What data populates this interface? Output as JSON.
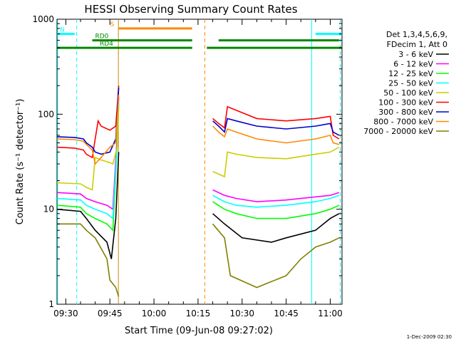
{
  "chart_data": {
    "type": "line",
    "title": "HESSI Observing Summary Count Rates",
    "xlabel": "Start Time (09-Jun-08 09:27:02)",
    "ylabel": "Count Rate (s⁻¹ detector⁻¹)",
    "yscale": "log",
    "ylim": [
      1,
      1000
    ],
    "xlim_minutes": [
      567,
      664
    ],
    "x_ticks": [
      {
        "minutes": 570,
        "label": "09:30"
      },
      {
        "minutes": 585,
        "label": "09:45"
      },
      {
        "minutes": 600,
        "label": "10:00"
      },
      {
        "minutes": 615,
        "label": "10:15"
      },
      {
        "minutes": 630,
        "label": "10:30"
      },
      {
        "minutes": 645,
        "label": "10:45"
      },
      {
        "minutes": 660,
        "label": "11:00"
      }
    ],
    "y_ticks": [
      {
        "value": 1,
        "label": "1"
      },
      {
        "value": 10,
        "label": "10"
      },
      {
        "value": 100,
        "label": "100"
      },
      {
        "value": 1000,
        "label": "1000"
      }
    ],
    "legend": {
      "placement": "right",
      "header": [
        "Det 1,3,4,5,6,9,",
        "FDecim 1, Att 0"
      ]
    },
    "series": [
      {
        "name": "3 - 6 keV",
        "color": "#000000",
        "points": [
          [
            567,
            10
          ],
          [
            575,
            9.5
          ],
          [
            577,
            8
          ],
          [
            580,
            6
          ],
          [
            584,
            4.5
          ],
          [
            585.5,
            3
          ],
          [
            587,
            8
          ],
          [
            588,
            40
          ],
          [
            619,
            null
          ],
          [
            620,
            9
          ],
          [
            624,
            7
          ],
          [
            630,
            5
          ],
          [
            640,
            4.5
          ],
          [
            645,
            5
          ],
          [
            655,
            6
          ],
          [
            660,
            8
          ],
          [
            663,
            9
          ]
        ]
      },
      {
        "name": "6 - 12 keV",
        "color": "#ff00ff",
        "points": [
          [
            567,
            15
          ],
          [
            575,
            14.5
          ],
          [
            577,
            13
          ],
          [
            580,
            12
          ],
          [
            584,
            11
          ],
          [
            586,
            10
          ],
          [
            587.5,
            60
          ],
          [
            588,
            150
          ],
          [
            619,
            null
          ],
          [
            620,
            16
          ],
          [
            624,
            14
          ],
          [
            628,
            13
          ],
          [
            635,
            12
          ],
          [
            645,
            12.5
          ],
          [
            655,
            13.5
          ],
          [
            660,
            14
          ],
          [
            663,
            15
          ]
        ]
      },
      {
        "name": "12 - 25 keV",
        "color": "#00ff00",
        "points": [
          [
            567,
            11
          ],
          [
            575,
            10.5
          ],
          [
            577,
            9
          ],
          [
            580,
            8
          ],
          [
            584,
            7
          ],
          [
            586,
            6
          ],
          [
            587.5,
            50
          ],
          [
            588,
            130
          ],
          [
            619,
            null
          ],
          [
            620,
            12
          ],
          [
            624,
            10
          ],
          [
            628,
            9
          ],
          [
            635,
            8
          ],
          [
            645,
            8
          ],
          [
            655,
            9
          ],
          [
            660,
            10
          ],
          [
            663,
            11
          ]
        ]
      },
      {
        "name": "25 - 50 keV",
        "color": "#00ffff",
        "points": [
          [
            567,
            13
          ],
          [
            575,
            12.5
          ],
          [
            577,
            11
          ],
          [
            580,
            10
          ],
          [
            584,
            9
          ],
          [
            586,
            8
          ],
          [
            587.5,
            50
          ],
          [
            588,
            130
          ],
          [
            619,
            null
          ],
          [
            620,
            14
          ],
          [
            624,
            12
          ],
          [
            628,
            11
          ],
          [
            635,
            10.5
          ],
          [
            645,
            11
          ],
          [
            655,
            12
          ],
          [
            660,
            13
          ],
          [
            663,
            14
          ]
        ]
      },
      {
        "name": "50 - 100 keV",
        "color": "#cccc00",
        "points": [
          [
            567,
            19
          ],
          [
            575,
            18.5
          ],
          [
            577,
            17
          ],
          [
            579,
            16
          ],
          [
            580,
            35
          ],
          [
            582,
            33
          ],
          [
            585,
            31
          ],
          [
            586,
            30
          ],
          [
            587.5,
            45
          ],
          [
            588,
            120
          ],
          [
            619,
            null
          ],
          [
            620,
            25
          ],
          [
            624,
            22
          ],
          [
            625,
            40
          ],
          [
            628,
            38
          ],
          [
            635,
            35
          ],
          [
            645,
            34
          ],
          [
            655,
            38
          ],
          [
            660,
            40
          ],
          [
            663,
            45
          ]
        ]
      },
      {
        "name": "100 - 300 keV",
        "color": "#ff0000",
        "points": [
          [
            567,
            45
          ],
          [
            573,
            44
          ],
          [
            576,
            42
          ],
          [
            577,
            38
          ],
          [
            579,
            35
          ],
          [
            580,
            55
          ],
          [
            581,
            85
          ],
          [
            582,
            75
          ],
          [
            585,
            68
          ],
          [
            587,
            75
          ],
          [
            588,
            200
          ],
          [
            619,
            null
          ],
          [
            620,
            90
          ],
          [
            622,
            80
          ],
          [
            624,
            72
          ],
          [
            625,
            120
          ],
          [
            628,
            110
          ],
          [
            635,
            90
          ],
          [
            645,
            85
          ],
          [
            655,
            90
          ],
          [
            660,
            95
          ],
          [
            661,
            60
          ],
          [
            663,
            55
          ]
        ]
      },
      {
        "name": "300 - 800 keV",
        "color": "#0000cc",
        "points": [
          [
            567,
            58
          ],
          [
            573,
            57
          ],
          [
            576,
            55
          ],
          [
            577,
            50
          ],
          [
            579,
            45
          ],
          [
            580,
            40
          ],
          [
            582,
            38
          ],
          [
            585,
            40
          ],
          [
            587,
            55
          ],
          [
            588,
            190
          ],
          [
            619,
            null
          ],
          [
            620,
            85
          ],
          [
            622,
            75
          ],
          [
            624,
            65
          ],
          [
            625,
            90
          ],
          [
            628,
            85
          ],
          [
            635,
            75
          ],
          [
            645,
            70
          ],
          [
            655,
            75
          ],
          [
            660,
            80
          ],
          [
            661,
            65
          ],
          [
            663,
            60
          ]
        ]
      },
      {
        "name": "800 - 7000 keV",
        "color": "#ff8800",
        "points": [
          [
            567,
            55
          ],
          [
            573,
            54
          ],
          [
            576,
            52
          ],
          [
            577,
            48
          ],
          [
            579,
            42
          ],
          [
            580,
            30
          ],
          [
            582,
            35
          ],
          [
            585,
            45
          ],
          [
            587,
            50
          ],
          [
            588,
            160
          ],
          [
            619,
            null
          ],
          [
            620,
            75
          ],
          [
            622,
            65
          ],
          [
            624,
            58
          ],
          [
            625,
            70
          ],
          [
            628,
            65
          ],
          [
            635,
            55
          ],
          [
            645,
            50
          ],
          [
            655,
            55
          ],
          [
            660,
            60
          ],
          [
            661,
            50
          ],
          [
            663,
            48
          ]
        ]
      },
      {
        "name": "7000 - 20000 keV",
        "color": "#808000",
        "points": [
          [
            567,
            7
          ],
          [
            575,
            7
          ],
          [
            577,
            6
          ],
          [
            580,
            5
          ],
          [
            584,
            3
          ],
          [
            585,
            1.8
          ],
          [
            587,
            1.5
          ],
          [
            588,
            1.2
          ],
          [
            619,
            null
          ],
          [
            620,
            7
          ],
          [
            624,
            5
          ],
          [
            626,
            2
          ],
          [
            635,
            1.5
          ],
          [
            645,
            2
          ],
          [
            650,
            3
          ],
          [
            655,
            4
          ],
          [
            660,
            4.5
          ],
          [
            663,
            5
          ]
        ]
      }
    ],
    "state_bars": [
      {
        "label": "N",
        "color": "#00ffff",
        "y": 700,
        "segments": [
          [
            567,
            573
          ],
          [
            655,
            664
          ]
        ]
      },
      {
        "label": "S",
        "color": "#ff8800",
        "y": 800,
        "segments": [
          [
            588,
            613
          ]
        ]
      },
      {
        "label": "RD0",
        "color": "#008800",
        "y": 600,
        "segments": [
          [
            579,
            613
          ],
          [
            622,
            663
          ]
        ]
      },
      {
        "label": "RD4",
        "color": "#008800",
        "y": 500,
        "segments": [
          [
            567,
            613
          ],
          [
            618,
            664
          ]
        ]
      }
    ],
    "vlines": [
      {
        "minutes": 567.2,
        "color": "#00ffff",
        "style": "solid"
      },
      {
        "minutes": 573.7,
        "color": "#00ffff",
        "style": "dashed"
      },
      {
        "minutes": 587.9,
        "color": "#cc8800",
        "style": "solid"
      },
      {
        "minutes": 617.3,
        "color": "#ff8800",
        "style": "dashed"
      },
      {
        "minutes": 653.7,
        "color": "#00ffff",
        "style": "solid"
      },
      {
        "minutes": 663.4,
        "color": "#00ffff",
        "style": "dashed"
      }
    ],
    "footer_date": "1-Dec-2009 02:30"
  }
}
